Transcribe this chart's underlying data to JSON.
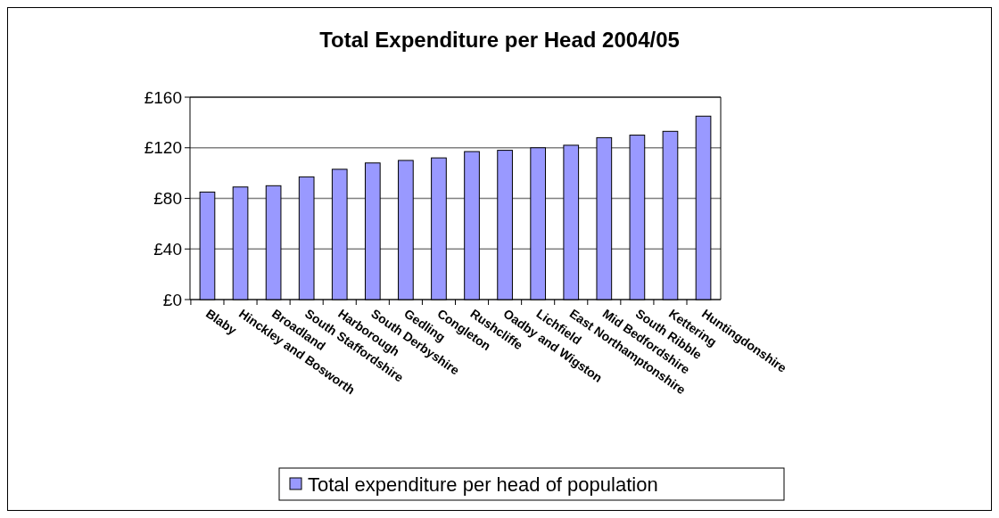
{
  "chart_data": {
    "type": "bar",
    "title": "Total Expenditure per Head 2004/05",
    "categories": [
      "Blaby",
      "Hinckley and Bosworth",
      "Broadland",
      "South Staffordshire",
      "Harborough",
      "South Derbyshire",
      "Gedling",
      "Congleton",
      "Rushcliffe",
      "Oadby and Wigston",
      "Lichfield",
      "East Northamptonshire",
      "Mid Bedfordshire",
      "South Ribble",
      "Kettering",
      "Huntingdonshire"
    ],
    "series": [
      {
        "name": "Total expenditure per head of population",
        "color": "#9999ff",
        "values": [
          85,
          89,
          90,
          97,
          103,
          108,
          110,
          112,
          117,
          118,
          120,
          122,
          128,
          130,
          133,
          145
        ]
      }
    ],
    "ylim": [
      0,
      160
    ],
    "yticks": [
      {
        "value": 0,
        "label": "£0"
      },
      {
        "value": 40,
        "label": "£40"
      },
      {
        "value": 80,
        "label": "£80"
      },
      {
        "value": 120,
        "label": "£120"
      },
      {
        "value": 160,
        "label": "£160"
      }
    ],
    "grid": "y",
    "legend": "bottom"
  }
}
